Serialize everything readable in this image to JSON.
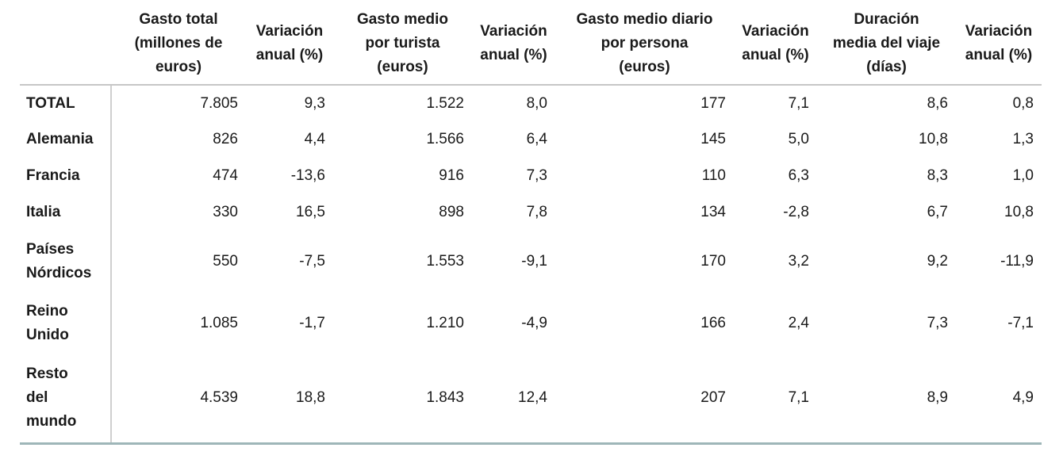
{
  "colors": {
    "background": "#ffffff",
    "text": "#1a1a1a",
    "header_rule": "#c6c6c6",
    "label_divider": "#cfcfcf",
    "bottom_rule": "#9eb6b8"
  },
  "table": {
    "header": {
      "row_label_header": "",
      "columns": [
        {
          "lines": "Gasto total\n(millones de\neuros)"
        },
        {
          "lines": "Variación\nanual (%)"
        },
        {
          "lines": "Gasto medio\npor turista\n(euros)"
        },
        {
          "lines": "Variación\nanual (%)"
        },
        {
          "lines": "Gasto medio diario\npor persona\n(euros)"
        },
        {
          "lines": "Variación\nanual (%)"
        },
        {
          "lines": "Duración\nmedia del viaje\n(días)"
        },
        {
          "lines": "Variación\nanual (%)"
        }
      ]
    },
    "rows": [
      {
        "label": "TOTAL",
        "values": [
          "7.805",
          "9,3",
          "1.522",
          "8,0",
          "177",
          "7,1",
          "8,6",
          "0,8"
        ]
      },
      {
        "label": "Alemania",
        "values": [
          "826",
          "4,4",
          "1.566",
          "6,4",
          "145",
          "5,0",
          "10,8",
          "1,3"
        ]
      },
      {
        "label": "Francia",
        "values": [
          "474",
          "-13,6",
          "916",
          "7,3",
          "110",
          "6,3",
          "8,3",
          "1,0"
        ]
      },
      {
        "label": "Italia",
        "values": [
          "330",
          "16,5",
          "898",
          "7,8",
          "134",
          "-2,8",
          "6,7",
          "10,8"
        ]
      },
      {
        "label": "Países\nNórdicos",
        "values": [
          "550",
          "-7,5",
          "1.553",
          "-9,1",
          "170",
          "3,2",
          "9,2",
          "-11,9"
        ]
      },
      {
        "label": "Reino\nUnido",
        "values": [
          "1.085",
          "-1,7",
          "1.210",
          "-4,9",
          "166",
          "2,4",
          "7,3",
          "-7,1"
        ]
      },
      {
        "label": "Resto\ndel\nmundo",
        "values": [
          "4.539",
          "18,8",
          "1.843",
          "12,4",
          "207",
          "7,1",
          "8,9",
          "4,9"
        ]
      }
    ]
  },
  "chart_data": {
    "type": "table",
    "title": "",
    "columns": [
      "Gasto total (millones de euros)",
      "Variación anual (%)",
      "Gasto medio por turista (euros)",
      "Variación anual (%)",
      "Gasto medio diario por persona (euros)",
      "Variación anual (%)",
      "Duración media del viaje (días)",
      "Variación anual (%)"
    ],
    "rows": [
      {
        "label": "TOTAL",
        "values": [
          7805,
          9.3,
          1522,
          8.0,
          177,
          7.1,
          8.6,
          0.8
        ]
      },
      {
        "label": "Alemania",
        "values": [
          826,
          4.4,
          1566,
          6.4,
          145,
          5.0,
          10.8,
          1.3
        ]
      },
      {
        "label": "Francia",
        "values": [
          474,
          -13.6,
          916,
          7.3,
          110,
          6.3,
          8.3,
          1.0
        ]
      },
      {
        "label": "Italia",
        "values": [
          330,
          16.5,
          898,
          7.8,
          134,
          -2.8,
          6.7,
          10.8
        ]
      },
      {
        "label": "Países Nórdicos",
        "values": [
          550,
          -7.5,
          1553,
          -9.1,
          170,
          3.2,
          9.2,
          -11.9
        ]
      },
      {
        "label": "Reino Unido",
        "values": [
          1085,
          -1.7,
          1210,
          -4.9,
          166,
          2.4,
          7.3,
          -7.1
        ]
      },
      {
        "label": "Resto del mundo",
        "values": [
          4539,
          18.8,
          1843,
          12.4,
          207,
          7.1,
          8.9,
          4.9
        ]
      }
    ]
  }
}
